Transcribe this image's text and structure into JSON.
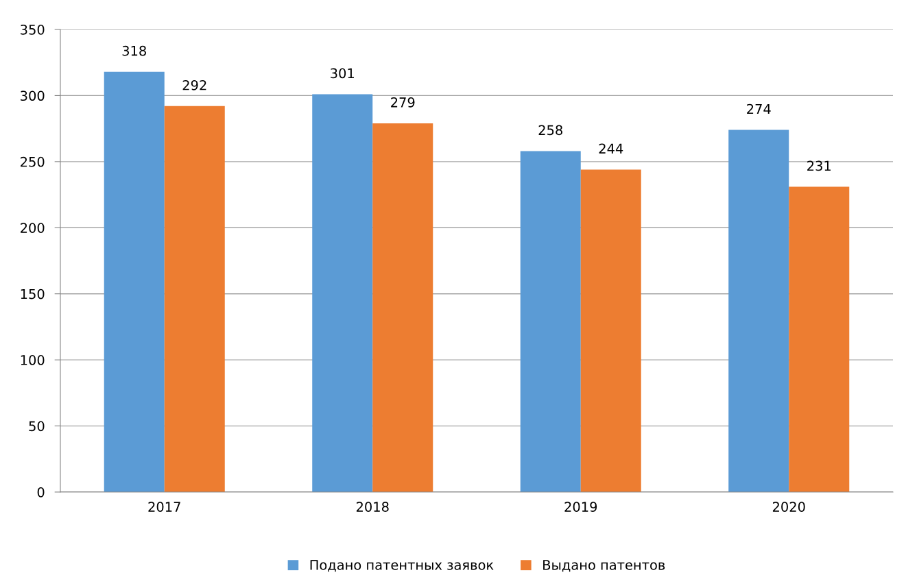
{
  "chart_data": {
    "type": "bar",
    "categories": [
      "2017",
      "2018",
      "2019",
      "2020"
    ],
    "series": [
      {
        "name": "Подано патентных заявок",
        "color": "#5b9bd5",
        "values": [
          318,
          301,
          258,
          274
        ]
      },
      {
        "name": "Выдано патентов",
        "color": "#ed7d31",
        "values": [
          292,
          279,
          244,
          231
        ]
      }
    ],
    "ylim": [
      0,
      350
    ],
    "yticks": [
      0,
      50,
      100,
      150,
      200,
      250,
      300,
      350
    ],
    "grid": "y",
    "legend": "bottom",
    "data_labels": true
  }
}
